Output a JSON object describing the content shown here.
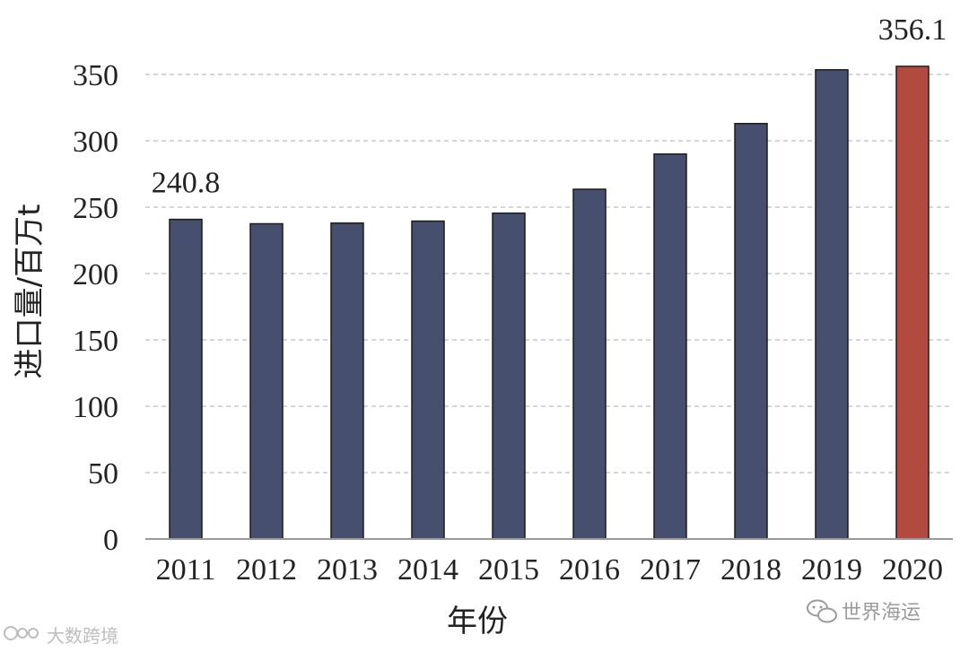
{
  "chart_data": {
    "type": "bar",
    "title": "",
    "xlabel": "年份",
    "ylabel": "进口量/百万t",
    "categories": [
      "2011",
      "2012",
      "2013",
      "2014",
      "2015",
      "2016",
      "2017",
      "2018",
      "2019",
      "2020"
    ],
    "values": [
      240.8,
      237.5,
      238,
      239.5,
      245.5,
      263.5,
      290,
      313,
      353.5,
      356.1
    ],
    "data_labels": [
      "240.8",
      "",
      "",
      "",
      "",
      "",
      "",
      "",
      "",
      "356.1"
    ],
    "ylim": [
      0,
      350
    ],
    "yticks": [
      "0",
      "50",
      "100",
      "150",
      "200",
      "250",
      "300",
      "350"
    ],
    "ytick_values": [
      0,
      50,
      100,
      150,
      200,
      250,
      300,
      350
    ],
    "grid": "horizontal dashed",
    "legend": "none",
    "colors": {
      "bar": "#46506e",
      "highlight_bar": "#b24a3f",
      "grid": "#c8c8c8",
      "axis": "#9a9a9a"
    },
    "highlight_index": 9
  },
  "watermarks": {
    "right": "世界海运",
    "left": "大数跨境"
  },
  "icons": {
    "right": "wechat-icon",
    "left": "brand-logo-icon"
  }
}
